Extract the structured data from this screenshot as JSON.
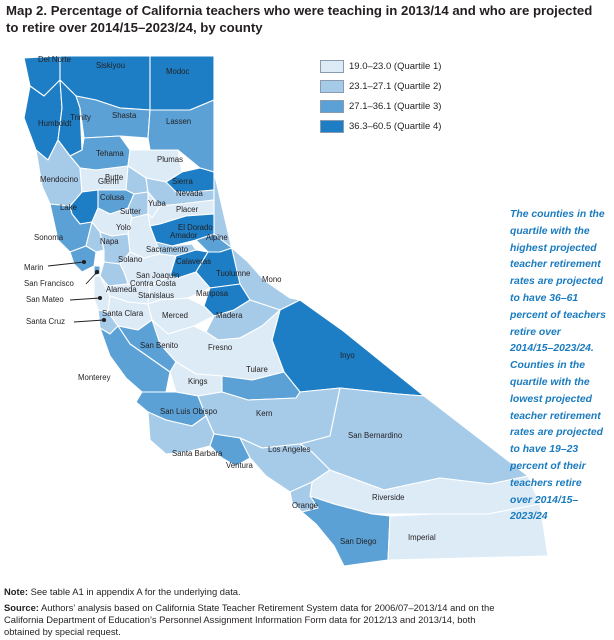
{
  "title": "Map 2. Percentage of California teachers who were teaching in 2013/14 and who are projected to retire over 2014/15–2023/24, by county",
  "colors": {
    "q1": "#ddebf7",
    "q2": "#a6cbe9",
    "q3": "#5ba1d6",
    "q4": "#1d7ec5",
    "border": "#ffffff",
    "callout": "#1a7bbf"
  },
  "legend": [
    {
      "label": "19.0–23.0 (Quartile 1)",
      "quartile": 1
    },
    {
      "label": "23.1–27.1 (Quartile 2)",
      "quartile": 2
    },
    {
      "label": "27.1–36.1 (Quartile 3)",
      "quartile": 3
    },
    {
      "label": "36.3–60.5 (Quartile 4)",
      "quartile": 4
    }
  ],
  "counties": [
    {
      "name": "Del Norte",
      "quartile": 4
    },
    {
      "name": "Siskiyou",
      "quartile": 4
    },
    {
      "name": "Modoc",
      "quartile": 4
    },
    {
      "name": "Humboldt",
      "quartile": 4
    },
    {
      "name": "Trinity",
      "quartile": 4
    },
    {
      "name": "Shasta",
      "quartile": 3
    },
    {
      "name": "Lassen",
      "quartile": 3
    },
    {
      "name": "Tehama",
      "quartile": 3
    },
    {
      "name": "Plumas",
      "quartile": 1
    },
    {
      "name": "Mendocino",
      "quartile": 2
    },
    {
      "name": "Glenn",
      "quartile": 1
    },
    {
      "name": "Butte",
      "quartile": 2
    },
    {
      "name": "Sierra",
      "quartile": 4
    },
    {
      "name": "Nevada",
      "quartile": 2
    },
    {
      "name": "Lake",
      "quartile": 4
    },
    {
      "name": "Colusa",
      "quartile": 3
    },
    {
      "name": "Sutter",
      "quartile": 2
    },
    {
      "name": "Yuba",
      "quartile": 1
    },
    {
      "name": "Placer",
      "quartile": 1
    },
    {
      "name": "El Dorado",
      "quartile": 4
    },
    {
      "name": "Alpine",
      "quartile": 3
    },
    {
      "name": "Yolo",
      "quartile": 1
    },
    {
      "name": "Sonoma",
      "quartile": 3
    },
    {
      "name": "Napa",
      "quartile": 2
    },
    {
      "name": "Amador",
      "quartile": 2
    },
    {
      "name": "Sacramento",
      "quartile": 1
    },
    {
      "name": "Solano",
      "quartile": 2
    },
    {
      "name": "Marin",
      "quartile": 3
    },
    {
      "name": "San Joaquin",
      "quartile": 1
    },
    {
      "name": "Calaveras",
      "quartile": 4
    },
    {
      "name": "Tuolumne",
      "quartile": 4
    },
    {
      "name": "Mono",
      "quartile": 2
    },
    {
      "name": "San Francisco",
      "quartile": 3
    },
    {
      "name": "Contra Costa",
      "quartile": 2
    },
    {
      "name": "Alameda",
      "quartile": 1
    },
    {
      "name": "Stanislaus",
      "quartile": 1
    },
    {
      "name": "Mariposa",
      "quartile": 4
    },
    {
      "name": "San Mateo",
      "quartile": 1
    },
    {
      "name": "Santa Clara",
      "quartile": 1
    },
    {
      "name": "Merced",
      "quartile": 1
    },
    {
      "name": "Madera",
      "quartile": 2
    },
    {
      "name": "Santa Cruz",
      "quartile": 2
    },
    {
      "name": "Inyo",
      "quartile": 4
    },
    {
      "name": "Fresno",
      "quartile": 1
    },
    {
      "name": "San Benito",
      "quartile": 3
    },
    {
      "name": "Monterey",
      "quartile": 3
    },
    {
      "name": "Kings",
      "quartile": 1
    },
    {
      "name": "Tulare",
      "quartile": 3
    },
    {
      "name": "San Luis Obispo",
      "quartile": 3
    },
    {
      "name": "Kern",
      "quartile": 2
    },
    {
      "name": "San Bernardino",
      "quartile": 2
    },
    {
      "name": "Santa Barbara",
      "quartile": 2
    },
    {
      "name": "Ventura",
      "quartile": 3
    },
    {
      "name": "Los Angeles",
      "quartile": 2
    },
    {
      "name": "Riverside",
      "quartile": 1
    },
    {
      "name": "Orange",
      "quartile": 2
    },
    {
      "name": "San Diego",
      "quartile": 3
    },
    {
      "name": "Imperial",
      "quartile": 1
    }
  ],
  "callout": "The counties in the quartile with the highest projected teacher retirement rates are projected to have 36–61 percent of teachers retire over 2014/15–2023/24. Counties in the quartile with the lowest projected teacher retirement rates are projected to have 19–23 percent of their teachers retire over 2014/15–2023/24",
  "note": {
    "label": "Note:",
    "text": "See table A1 in appendix A for the underlying data."
  },
  "source": {
    "label": "Source:",
    "text": "Authors’ analysis based on California State Teacher Retirement System data for 2006/07–2013/14 and on the California Department of Education’s Personnel Assignment Information Form data for 2012/13 and 2013/14, both obtained by special request."
  }
}
